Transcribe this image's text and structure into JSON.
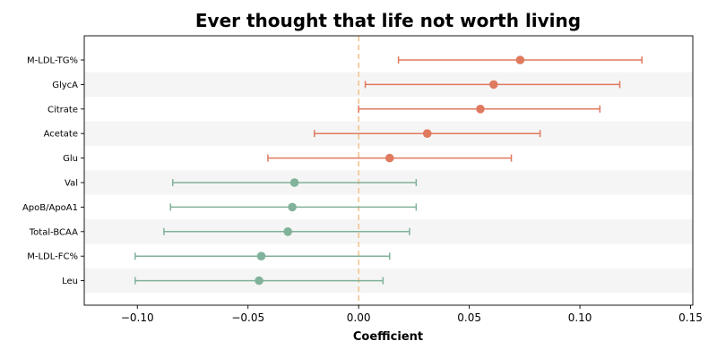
{
  "chart_data": {
    "type": "forest",
    "title": "Ever thought that life not worth living",
    "xlabel": "Coefficient",
    "ylabel": "",
    "xlim": [
      -0.124,
      0.151
    ],
    "xticks": [
      -0.1,
      -0.05,
      0.0,
      0.05,
      0.1,
      0.15
    ],
    "xtick_labels": [
      "−0.10",
      "−0.05",
      "0.00",
      "0.05",
      "0.10",
      "0.15"
    ],
    "reference_line": 0.0,
    "reference_color": "#f5c48f",
    "positive_color": "#e07a5f",
    "negative_color": "#81b29a",
    "grid": false,
    "row_banding": true,
    "items": [
      {
        "label": "M-LDL-TG%",
        "estimate": 0.073,
        "ci_low": 0.018,
        "ci_high": 0.128
      },
      {
        "label": "GlycA",
        "estimate": 0.061,
        "ci_low": 0.003,
        "ci_high": 0.118
      },
      {
        "label": "Citrate",
        "estimate": 0.055,
        "ci_low": 0.0,
        "ci_high": 0.109
      },
      {
        "label": "Acetate",
        "estimate": 0.031,
        "ci_low": -0.02,
        "ci_high": 0.082
      },
      {
        "label": "Glu",
        "estimate": 0.014,
        "ci_low": -0.041,
        "ci_high": 0.069
      },
      {
        "label": "Val",
        "estimate": -0.029,
        "ci_low": -0.084,
        "ci_high": 0.026
      },
      {
        "label": "ApoB/ApoA1",
        "estimate": -0.03,
        "ci_low": -0.085,
        "ci_high": 0.026
      },
      {
        "label": "Total-BCAA",
        "estimate": -0.032,
        "ci_low": -0.088,
        "ci_high": 0.023
      },
      {
        "label": "M-LDL-FC%",
        "estimate": -0.044,
        "ci_low": -0.101,
        "ci_high": 0.014
      },
      {
        "label": "Leu",
        "estimate": -0.045,
        "ci_low": -0.101,
        "ci_high": 0.011
      }
    ]
  }
}
